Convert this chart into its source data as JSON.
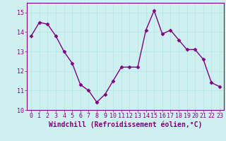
{
  "x": [
    0,
    1,
    2,
    3,
    4,
    5,
    6,
    7,
    8,
    9,
    10,
    11,
    12,
    13,
    14,
    15,
    16,
    17,
    18,
    19,
    20,
    21,
    22,
    23
  ],
  "y": [
    13.8,
    14.5,
    14.4,
    13.8,
    13.0,
    12.4,
    11.3,
    11.0,
    10.4,
    10.8,
    11.5,
    12.2,
    12.2,
    12.2,
    14.1,
    15.1,
    13.9,
    14.1,
    13.6,
    13.1,
    13.1,
    12.6,
    11.4,
    11.2
  ],
  "line_color": "#800080",
  "marker": "D",
  "markersize": 2.5,
  "linewidth": 1.0,
  "xlabel": "Windchill (Refroidissement éolien,°C)",
  "xlabel_fontsize": 7,
  "background_color": "#cff0f0",
  "grid_color": "#aadddd",
  "ylim": [
    10,
    15.5
  ],
  "xlim": [
    -0.5,
    23.5
  ],
  "yticks": [
    10,
    11,
    12,
    13,
    14,
    15
  ],
  "xticks": [
    0,
    1,
    2,
    3,
    4,
    5,
    6,
    7,
    8,
    9,
    10,
    11,
    12,
    13,
    14,
    15,
    16,
    17,
    18,
    19,
    20,
    21,
    22,
    23
  ],
  "tick_fontsize": 6,
  "tick_color": "#800080",
  "spine_color": "#800080"
}
